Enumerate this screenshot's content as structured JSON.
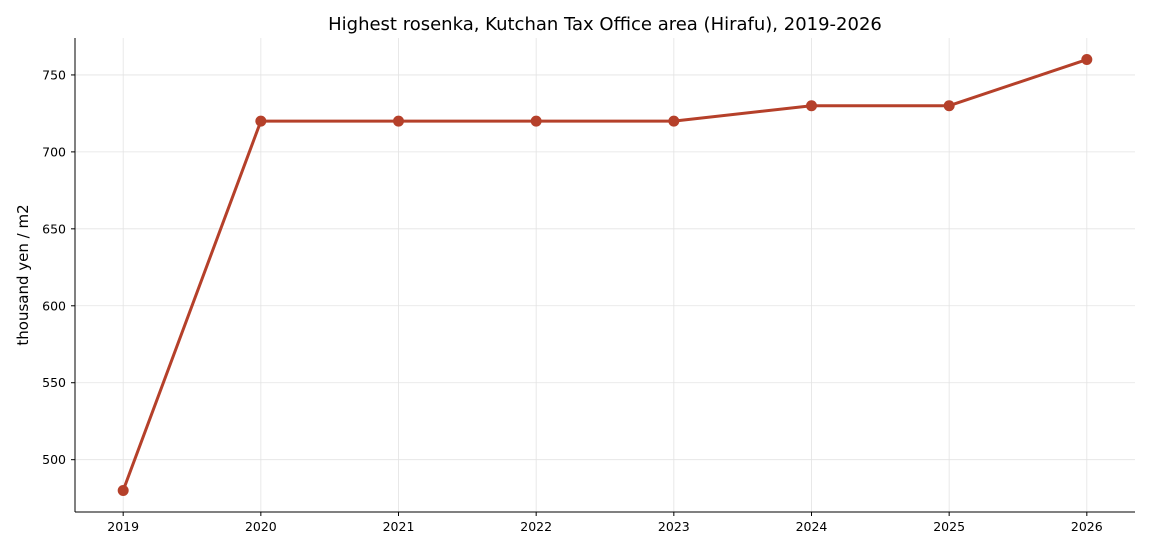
{
  "chart_data": {
    "type": "line",
    "title": "Highest rosenka, Kutchan Tax Office area (Hirafu), 2019-2026",
    "xlabel": "",
    "ylabel": "thousand yen / m2",
    "x": [
      2019,
      2020,
      2021,
      2022,
      2023,
      2024,
      2025,
      2026
    ],
    "series": [
      {
        "values": [
          480,
          720,
          720,
          720,
          720,
          730,
          730,
          760
        ]
      }
    ],
    "xticks": [
      "2019",
      "2020",
      "2021",
      "2022",
      "2023",
      "2024",
      "2025",
      "2026"
    ],
    "yticks": [
      500,
      550,
      600,
      650,
      700,
      750
    ],
    "xlim": [
      2018.65,
      2026.35
    ],
    "ylim": [
      466,
      774
    ],
    "grid": true,
    "legend": "none",
    "color": "#b5402a"
  }
}
